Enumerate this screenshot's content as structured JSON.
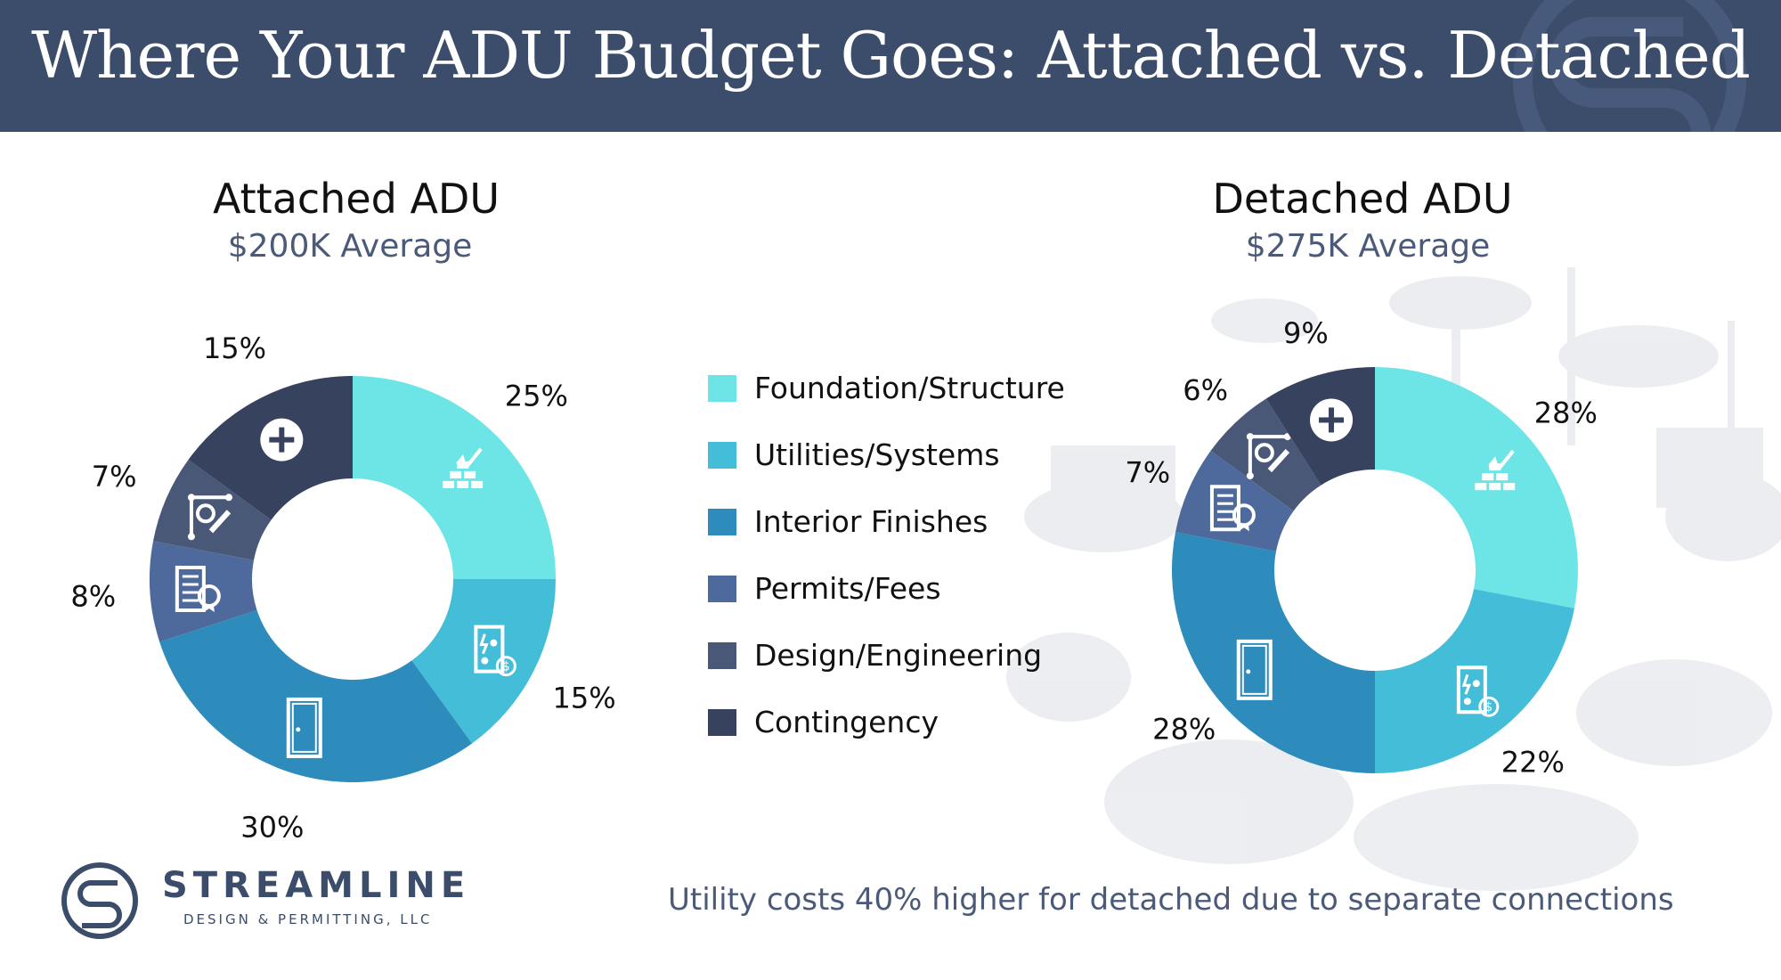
{
  "header": {
    "title": "Where Your ADU Budget Goes: Attached vs. Detached"
  },
  "colors": {
    "header_bg": "#3b4d6b",
    "Foundation/Structure": "#6de5e6",
    "Utilities/Systems": "#44bdd9",
    "Interior Finishes": "#2d8cbc",
    "Permits/Fees": "#4e6a9c",
    "Design/Engineering": "#4a5878",
    "Contingency": "#37425e"
  },
  "legend": {
    "items": [
      {
        "label": "Foundation/Structure",
        "color": "#6de5e6"
      },
      {
        "label": "Utilities/Systems",
        "color": "#44bdd9"
      },
      {
        "label": "Interior Finishes",
        "color": "#2d8cbc"
      },
      {
        "label": "Permits/Fees",
        "color": "#4e6a9c"
      },
      {
        "label": "Design/Engineering",
        "color": "#4a5878"
      },
      {
        "label": "Contingency",
        "color": "#37425e"
      }
    ]
  },
  "chart_data": [
    {
      "type": "pie",
      "title": "Attached ADU",
      "subtitle": "$200K Average",
      "categories": [
        "Foundation/Structure",
        "Utilities/Systems",
        "Interior Finishes",
        "Permits/Fees",
        "Design/Engineering",
        "Contingency"
      ],
      "values": [
        25,
        15,
        30,
        8,
        7,
        15
      ],
      "labels": [
        "25%",
        "15%",
        "30%",
        "8%",
        "7%",
        "15%"
      ],
      "icons": [
        "bricks-trowel-icon",
        "utility-bill-icon",
        "door-icon",
        "permit-document-icon",
        "design-tools-icon",
        "plus-circle-icon"
      ]
    },
    {
      "type": "pie",
      "title": "Detached ADU",
      "subtitle": "$275K Average",
      "categories": [
        "Foundation/Structure",
        "Utilities/Systems",
        "Interior Finishes",
        "Permits/Fees",
        "Design/Engineering",
        "Contingency"
      ],
      "values": [
        28,
        22,
        28,
        7,
        6,
        9
      ],
      "labels": [
        "28%",
        "22%",
        "28%",
        "7%",
        "6%",
        "9%"
      ],
      "icons": [
        "bricks-trowel-icon",
        "utility-bill-icon",
        "door-icon",
        "permit-document-icon",
        "design-tools-icon",
        "plus-circle-icon"
      ]
    }
  ],
  "footer": {
    "logo_name": "STREAMLINE",
    "logo_tagline": "DESIGN & PERMITTING, LLC",
    "note": "Utility costs 40% higher for detached due to separate connections"
  }
}
